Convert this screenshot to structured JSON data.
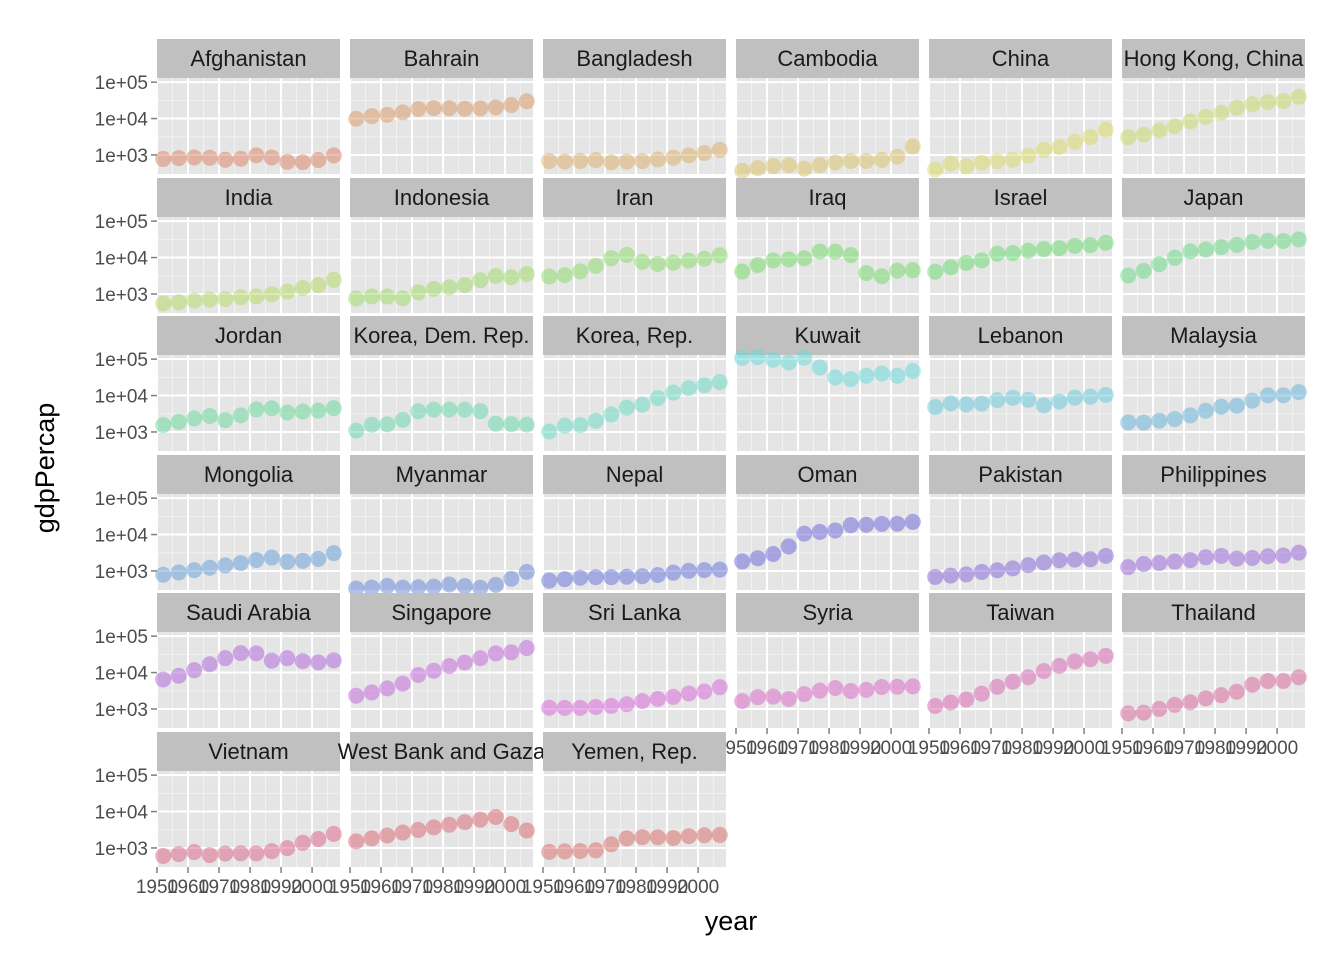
{
  "chart_data": {
    "type": "scatter",
    "faceted": true,
    "xlabel": "year",
    "ylabel": "gdpPercap",
    "y_scale": "log10",
    "ylim": [
      300,
      130000
    ],
    "y_ticks": [
      {
        "value": 1000,
        "label": "1e+03"
      },
      {
        "value": 10000,
        "label": "1e+04"
      },
      {
        "value": 100000,
        "label": "1e+05"
      }
    ],
    "xlim": [
      1950,
      2009
    ],
    "x_ticks": [
      {
        "value": 1950,
        "label": "1950"
      },
      {
        "value": 1960,
        "label": "1960"
      },
      {
        "value": 1970,
        "label": "1970"
      },
      {
        "value": 1980,
        "label": "1980"
      },
      {
        "value": 1990,
        "label": "1990"
      },
      {
        "value": 2000,
        "label": "2000"
      }
    ],
    "x": [
      1952,
      1957,
      1962,
      1967,
      1972,
      1977,
      1982,
      1987,
      1992,
      1997,
      2002,
      2007
    ],
    "grid": true,
    "legend": "none",
    "colors": {
      "panel_bg": "#e5e5e5",
      "strip_bg": "#c0c0c0",
      "grid_major": "#ffffff",
      "grid_minor": "#f2f2f2",
      "tick_text": "#4d4d4d",
      "point_palette": "hue-per-country"
    },
    "point_alpha": 0.5,
    "series": [
      {
        "name": "Afghanistan",
        "values": [
          779,
          821,
          853,
          836,
          740,
          786,
          978,
          852,
          649,
          635,
          727,
          975
        ]
      },
      {
        "name": "Bahrain",
        "values": [
          9867,
          11636,
          12753,
          14805,
          18269,
          19340,
          19211,
          18524,
          19036,
          20292,
          23404,
          29796
        ]
      },
      {
        "name": "Bangladesh",
        "values": [
          684,
          662,
          686,
          721,
          630,
          660,
          677,
          752,
          838,
          973,
          1136,
          1391
        ]
      },
      {
        "name": "Cambodia",
        "values": [
          368,
          434,
          497,
          523,
          422,
          525,
          625,
          683,
          682,
          734,
          896,
          1714
        ]
      },
      {
        "name": "China",
        "values": [
          400,
          576,
          488,
          613,
          677,
          741,
          962,
          1379,
          1656,
          2289,
          3119,
          4959
        ]
      },
      {
        "name": "Hong Kong, China",
        "values": [
          3054,
          3629,
          4693,
          6198,
          8316,
          11186,
          14561,
          20038,
          24758,
          28378,
          30209,
          39725
        ]
      },
      {
        "name": "India",
        "values": [
          547,
          590,
          658,
          701,
          724,
          813,
          856,
          977,
          1164,
          1459,
          1747,
          2452
        ]
      },
      {
        "name": "Indonesia",
        "values": [
          750,
          859,
          849,
          762,
          1111,
          1383,
          1517,
          1748,
          2383,
          3119,
          2874,
          3541
        ]
      },
      {
        "name": "Iran",
        "values": [
          3035,
          3290,
          4187,
          5907,
          9613,
          11889,
          7608,
          6642,
          7236,
          8264,
          9241,
          11606
        ]
      },
      {
        "name": "Iraq",
        "values": [
          4130,
          6229,
          8342,
          8931,
          9576,
          14689,
          14517,
          11644,
          3746,
          3076,
          4391,
          4471
        ]
      },
      {
        "name": "Israel",
        "values": [
          4087,
          5385,
          7106,
          8393,
          12787,
          13306,
          15367,
          17122,
          18051,
          20897,
          21906,
          25523
        ]
      },
      {
        "name": "Japan",
        "values": [
          3217,
          4318,
          6577,
          9848,
          14779,
          16610,
          19384,
          22376,
          26825,
          28817,
          28605,
          31656
        ]
      },
      {
        "name": "Jordan",
        "values": [
          1547,
          1886,
          2348,
          2742,
          2110,
          2853,
          4161,
          4448,
          3431,
          3645,
          3845,
          4519
        ]
      },
      {
        "name": "Korea, Dem. Rep.",
        "values": [
          1088,
          1571,
          1622,
          2144,
          3702,
          4106,
          4106,
          4106,
          3726,
          1691,
          1646,
          1593
        ]
      },
      {
        "name": "Korea, Rep.",
        "values": [
          1031,
          1488,
          1536,
          2029,
          3031,
          4657,
          5623,
          8533,
          12104,
          15994,
          19234,
          23348
        ]
      },
      {
        "name": "Kuwait",
        "values": [
          108382,
          113523,
          95458,
          80895,
          109348,
          59265,
          31354,
          28118,
          34933,
          40301,
          35110,
          47307
        ]
      },
      {
        "name": "Lebanon",
        "values": [
          4835,
          6090,
          5716,
          6006,
          7486,
          8660,
          7641,
          5377,
          6891,
          8755,
          9313,
          10461
        ]
      },
      {
        "name": "Malaysia",
        "values": [
          1831,
          1810,
          2037,
          2277,
          2849,
          3828,
          4920,
          5249,
          7278,
          10132,
          10207,
          12452
        ]
      },
      {
        "name": "Mongolia",
        "values": [
          787,
          912,
          1056,
          1226,
          1421,
          1648,
          2000,
          2338,
          1786,
          1902,
          2140,
          3096
        ]
      },
      {
        "name": "Myanmar",
        "values": [
          331,
          350,
          388,
          349,
          357,
          371,
          424,
          385,
          347,
          415,
          611,
          944
        ]
      },
      {
        "name": "Nepal",
        "values": [
          546,
          598,
          652,
          676,
          675,
          695,
          718,
          776,
          898,
          1010,
          1057,
          1091
        ]
      },
      {
        "name": "Oman",
        "values": [
          1828,
          2243,
          2925,
          4721,
          10618,
          11848,
          12955,
          18115,
          18617,
          19702,
          19775,
          22316
        ]
      },
      {
        "name": "Pakistan",
        "values": [
          685,
          747,
          803,
          942,
          1050,
          1176,
          1444,
          1705,
          1972,
          2049,
          2093,
          2606
        ]
      },
      {
        "name": "Philippines",
        "values": [
          1273,
          1548,
          1650,
          1814,
          1989,
          2373,
          2603,
          2190,
          2279,
          2537,
          2651,
          3190
        ]
      },
      {
        "name": "Saudi Arabia",
        "values": [
          6460,
          8157,
          11627,
          16903,
          24837,
          34168,
          33693,
          21199,
          24841,
          20587,
          19014,
          21655
        ]
      },
      {
        "name": "Singapore",
        "values": [
          2315,
          2844,
          3675,
          4977,
          8597,
          11210,
          15169,
          18862,
          24769,
          33519,
          36023,
          47143
        ]
      },
      {
        "name": "Sri Lanka",
        "values": [
          1083,
          1072,
          1074,
          1136,
          1213,
          1349,
          1648,
          1877,
          2154,
          2665,
          3015,
          3970
        ]
      },
      {
        "name": "Syria",
        "values": [
          1643,
          2117,
          2194,
          1882,
          2571,
          3195,
          3761,
          3116,
          3341,
          4014,
          4091,
          4185
        ]
      },
      {
        "name": "Taiwan",
        "values": [
          1207,
          1508,
          1823,
          2644,
          4063,
          5597,
          7426,
          11055,
          15216,
          20207,
          23235,
          28718
        ]
      },
      {
        "name": "Thailand",
        "values": [
          757,
          793,
          1002,
          1296,
          1524,
          1962,
          2394,
          2982,
          4616,
          5853,
          5913,
          7458
        ]
      },
      {
        "name": "Vietnam",
        "values": [
          605,
          676,
          772,
          637,
          700,
          714,
          707,
          821,
          989,
          1386,
          1764,
          2442
        ]
      },
      {
        "name": "West Bank and Gaza",
        "values": [
          1516,
          1827,
          2198,
          2650,
          3133,
          3683,
          4337,
          5108,
          6018,
          7111,
          4516,
          3026
        ]
      },
      {
        "name": "Yemen, Rep.",
        "values": [
          782,
          804,
          826,
          862,
          1266,
          1830,
          1978,
          1972,
          1879,
          2118,
          2235,
          2281
        ]
      }
    ]
  }
}
